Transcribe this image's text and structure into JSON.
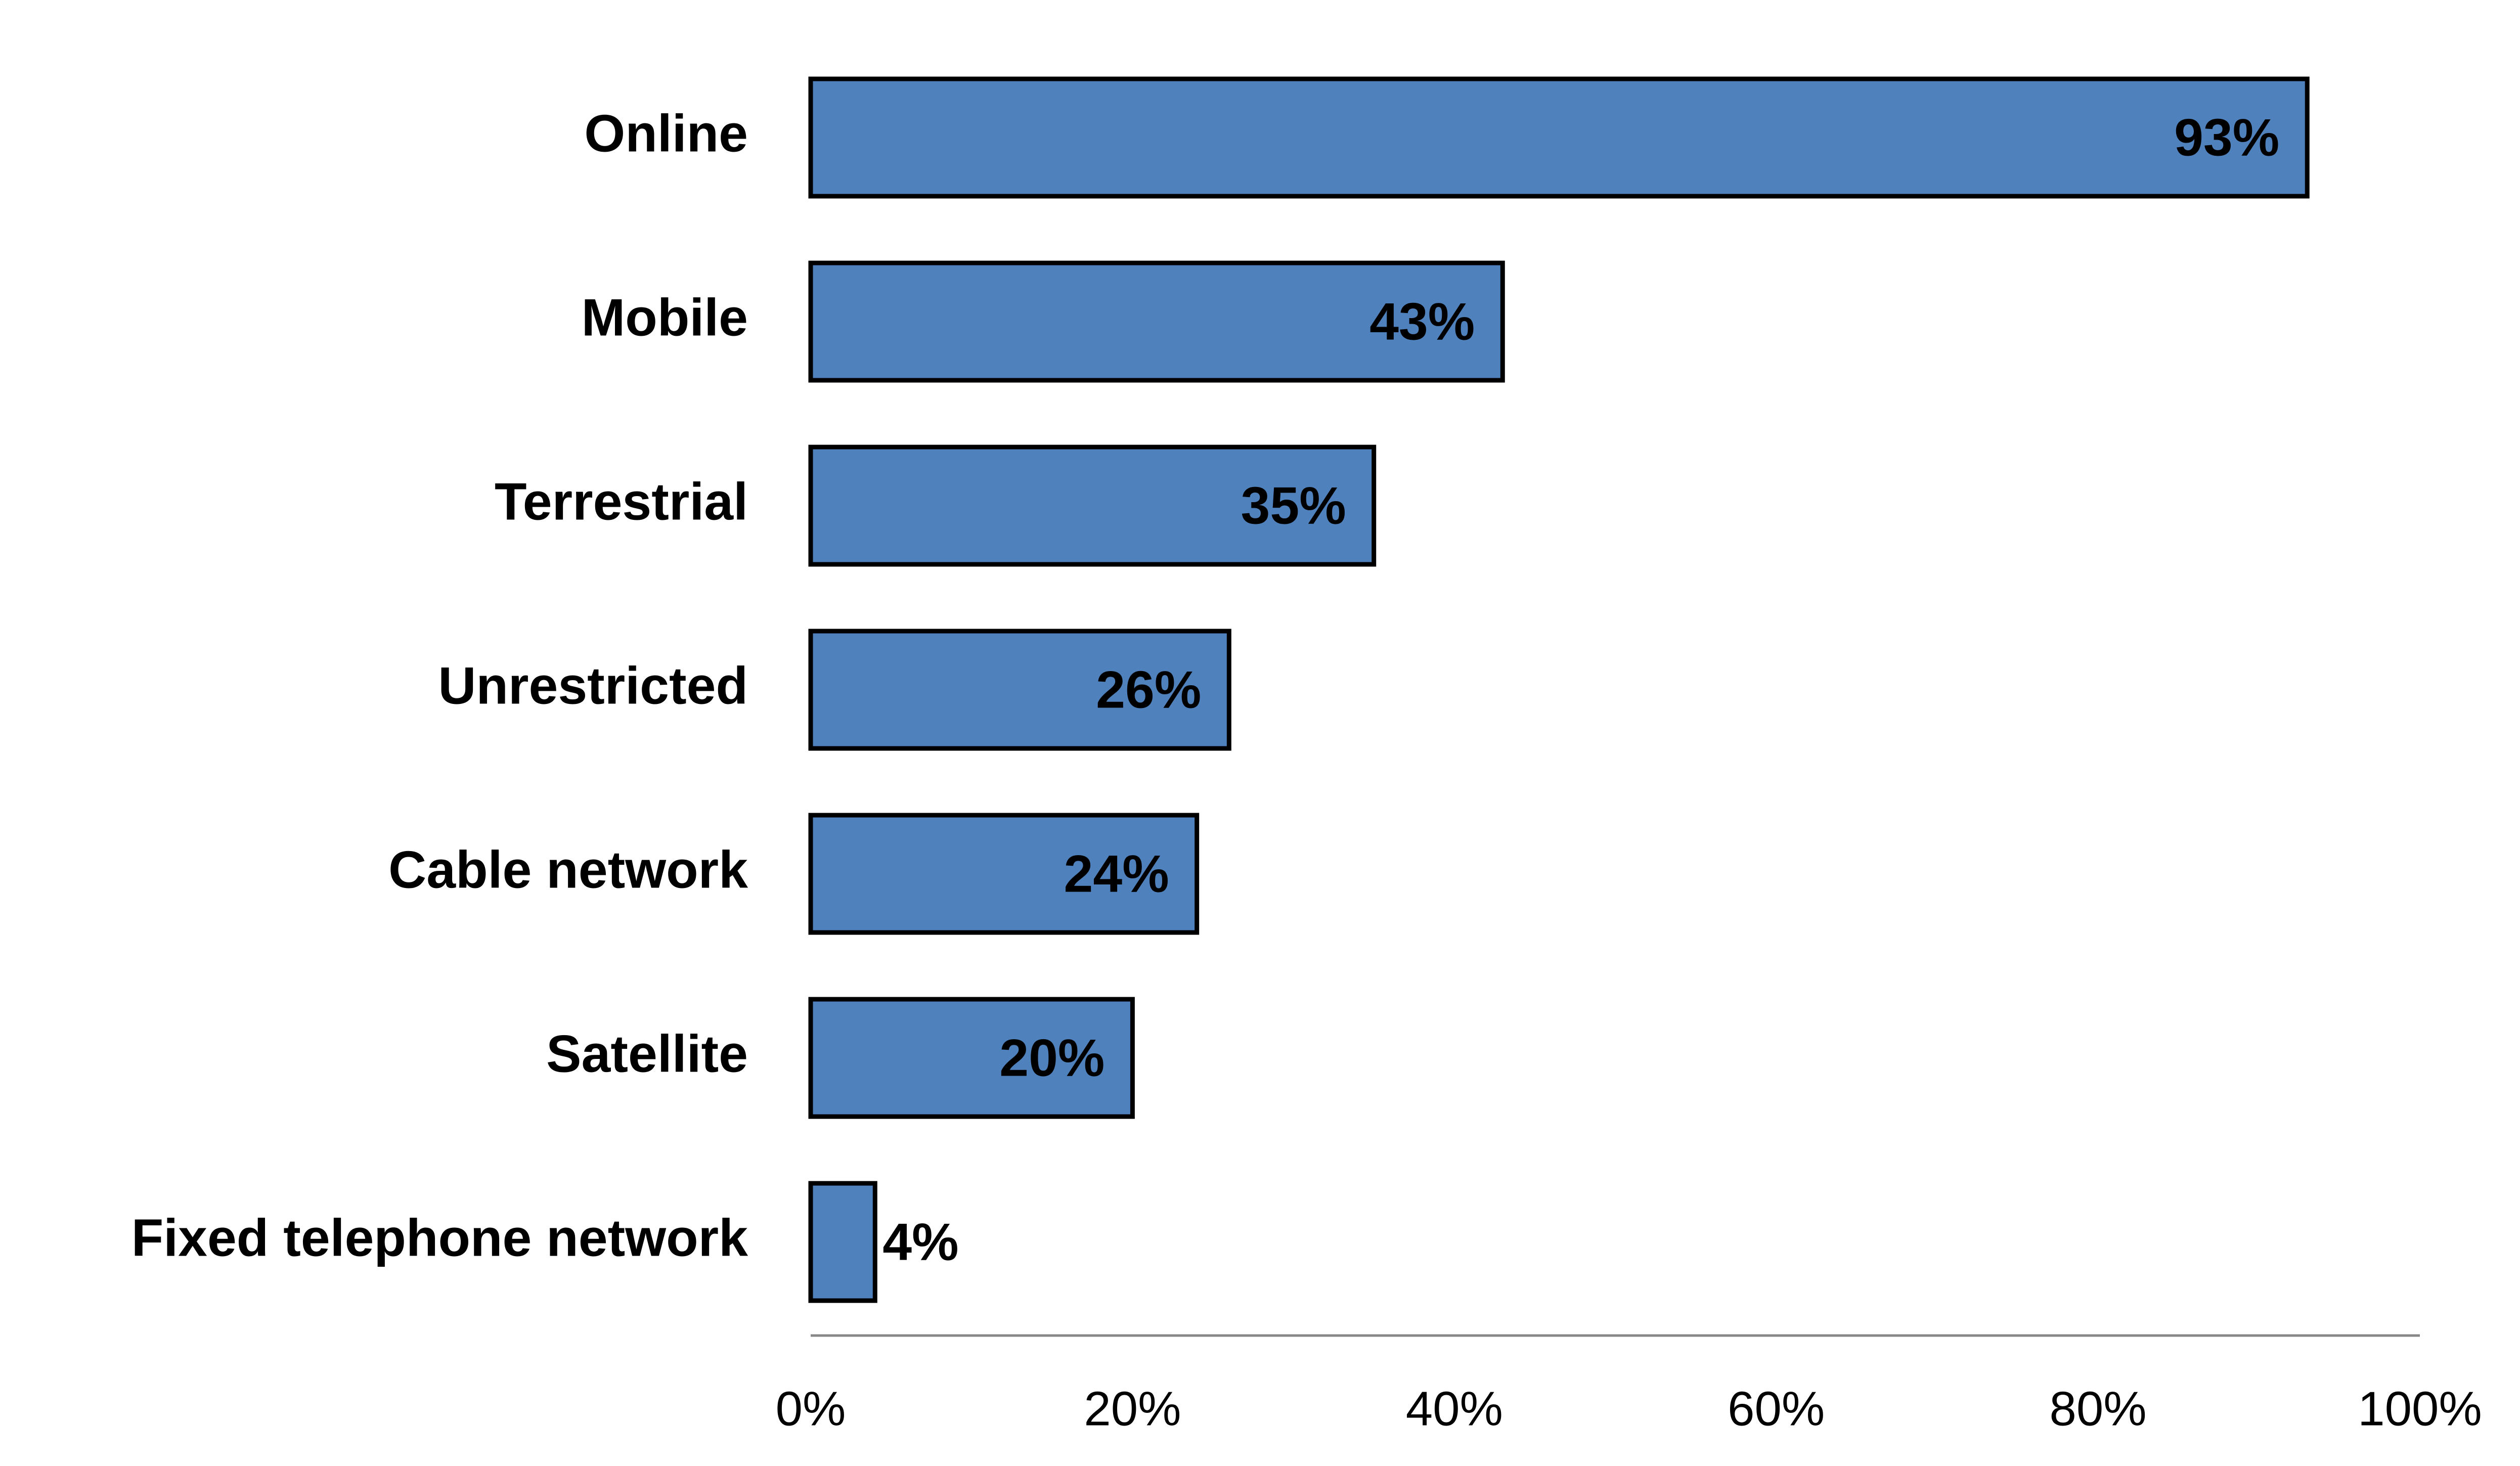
{
  "chart_data": {
    "type": "bar",
    "orientation": "horizontal",
    "categories": [
      "Online",
      "Mobile",
      "Terrestrial",
      "Unrestricted",
      "Cable network",
      "Satellite",
      "Fixed telephone network"
    ],
    "values": [
      93,
      43,
      35,
      26,
      24,
      20,
      4
    ],
    "value_labels": [
      "93%",
      "43%",
      "35%",
      "26%",
      "24%",
      "20%",
      "4%"
    ],
    "color": "#4f81bd",
    "xlim": [
      0,
      100
    ],
    "xticks": [
      {
        "value": 0,
        "label": "0%"
      },
      {
        "value": 20,
        "label": "20%"
      },
      {
        "value": 40,
        "label": "40%"
      },
      {
        "value": 60,
        "label": "60%"
      },
      {
        "value": 80,
        "label": "80%"
      },
      {
        "value": 100,
        "label": "100%"
      }
    ],
    "grid": false
  }
}
